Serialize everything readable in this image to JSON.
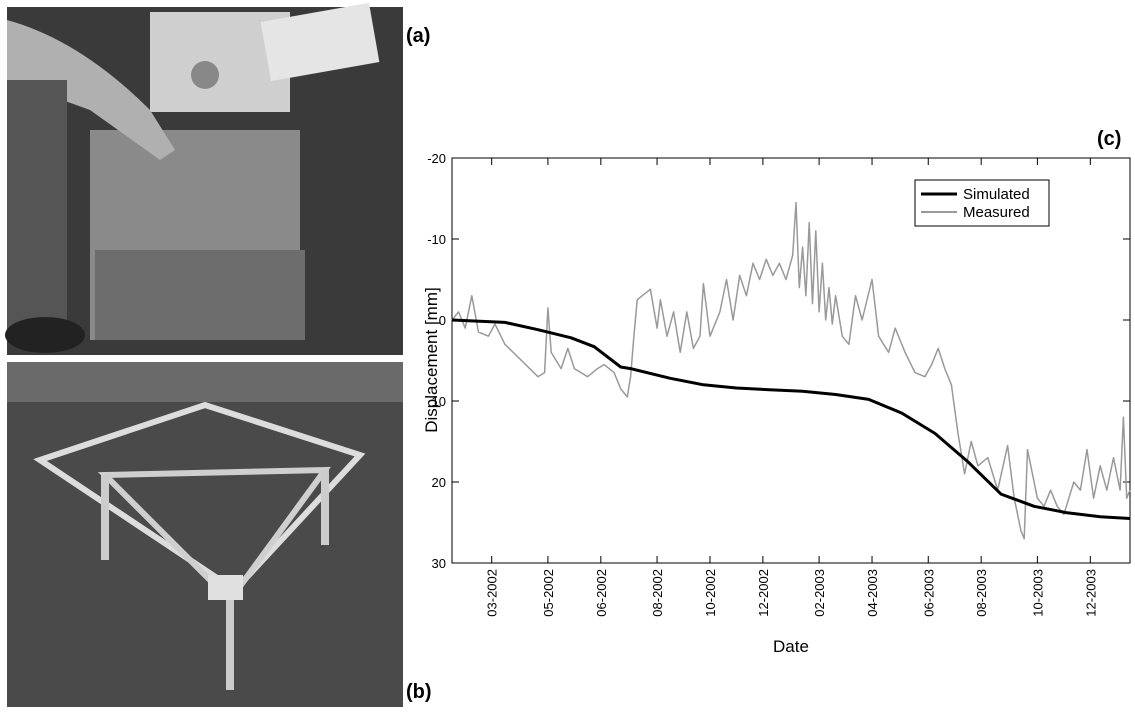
{
  "panel_labels": [
    "(a)",
    "(b)",
    "(c)"
  ],
  "chart_data": {
    "type": "line",
    "xlabel": "Date",
    "ylabel": "Displacement [mm]",
    "xlim": [
      2002.04,
      2004.09
    ],
    "xticks": [
      {
        "value": 2002.16,
        "label": "03-2002"
      },
      {
        "value": 2002.33,
        "label": "05-2002"
      },
      {
        "value": 2002.49,
        "label": "06-2002"
      },
      {
        "value": 2002.66,
        "label": "08-2002"
      },
      {
        "value": 2002.82,
        "label": "10-2002"
      },
      {
        "value": 2002.98,
        "label": "12-2002"
      },
      {
        "value": 2003.15,
        "label": "02-2003"
      },
      {
        "value": 2003.31,
        "label": "04-2003"
      },
      {
        "value": 2003.48,
        "label": "06-2003"
      },
      {
        "value": 2003.64,
        "label": "08-2003"
      },
      {
        "value": 2003.81,
        "label": "10-2003"
      },
      {
        "value": 2003.97,
        "label": "12-2003"
      }
    ],
    "ylim": [
      -20,
      30
    ],
    "y_inverted": true,
    "yticks": [
      -20,
      -10,
      0,
      10,
      20,
      30
    ],
    "legend": "upper right",
    "series": [
      {
        "name": "Simulated",
        "color": "#000000",
        "x": [
          2002.04,
          2002.2,
          2002.3,
          2002.4,
          2002.47,
          2002.55,
          2002.58,
          2002.7,
          2002.8,
          2002.9,
          2003.0,
          2003.1,
          2003.2,
          2003.3,
          2003.4,
          2003.5,
          2003.6,
          2003.7,
          2003.8,
          2003.9,
          2004.0,
          2004.09
        ],
        "values": [
          0,
          0.3,
          1.2,
          2.2,
          3.3,
          5.8,
          6.0,
          7.2,
          8.0,
          8.4,
          8.6,
          8.8,
          9.2,
          9.8,
          11.5,
          14,
          17.5,
          21.5,
          23,
          23.8,
          24.3,
          24.5
        ]
      },
      {
        "name": "Measured",
        "color": "#999999",
        "x": [
          2002.04,
          2002.06,
          2002.08,
          2002.1,
          2002.12,
          2002.15,
          2002.17,
          2002.2,
          2002.25,
          2002.3,
          2002.32,
          2002.33,
          2002.34,
          2002.37,
          2002.39,
          2002.41,
          2002.45,
          2002.48,
          2002.5,
          2002.53,
          2002.55,
          2002.57,
          2002.58,
          2002.59,
          2002.6,
          2002.64,
          2002.66,
          2002.67,
          2002.69,
          2002.71,
          2002.73,
          2002.75,
          2002.77,
          2002.79,
          2002.8,
          2002.82,
          2002.85,
          2002.87,
          2002.89,
          2002.91,
          2002.93,
          2002.95,
          2002.97,
          2002.99,
          2003.01,
          2003.03,
          2003.05,
          2003.07,
          2003.08,
          2003.09,
          2003.1,
          2003.11,
          2003.12,
          2003.13,
          2003.14,
          2003.15,
          2003.16,
          2003.17,
          2003.18,
          2003.19,
          2003.2,
          2003.22,
          2003.24,
          2003.26,
          2003.28,
          2003.31,
          2003.33,
          2003.36,
          2003.38,
          2003.41,
          2003.44,
          2003.47,
          2003.49,
          2003.51,
          2003.53,
          2003.55,
          2003.57,
          2003.59,
          2003.61,
          2003.63,
          2003.66,
          2003.69,
          2003.72,
          2003.74,
          2003.76,
          2003.77,
          2003.78,
          2003.81,
          2003.83,
          2003.85,
          2003.87,
          2003.89,
          2003.92,
          2003.94,
          2003.96,
          2003.98,
          2004.0,
          2004.02,
          2004.04,
          2004.06,
          2004.07,
          2004.08,
          2004.09
        ],
        "values": [
          0,
          -1,
          1,
          -3,
          1.5,
          2,
          0.5,
          3,
          5,
          7,
          6.5,
          -1.5,
          4,
          6,
          3.5,
          6,
          7,
          6,
          5.5,
          6.5,
          8.5,
          9.5,
          7,
          2,
          -2.5,
          -3.8,
          1,
          -2.5,
          2,
          -1,
          4,
          -1,
          3.5,
          2,
          -4.5,
          2,
          -1,
          -5,
          0,
          -5.5,
          -3,
          -7,
          -5,
          -7.5,
          -5.5,
          -7,
          -5,
          -8,
          -14.5,
          -4,
          -9,
          -3,
          -12,
          -2,
          -11,
          -1,
          -7,
          0,
          -4,
          0.5,
          -3,
          2,
          3,
          -3,
          0,
          -5,
          2,
          4,
          1,
          4,
          6.5,
          7,
          5.5,
          3.5,
          6,
          8,
          14,
          19,
          15,
          18,
          17,
          21,
          15.5,
          22,
          26,
          27,
          16,
          22,
          23,
          21,
          23,
          24,
          20,
          21,
          16,
          22,
          18,
          21,
          17,
          21,
          12,
          22,
          21
        ]
      }
    ]
  }
}
